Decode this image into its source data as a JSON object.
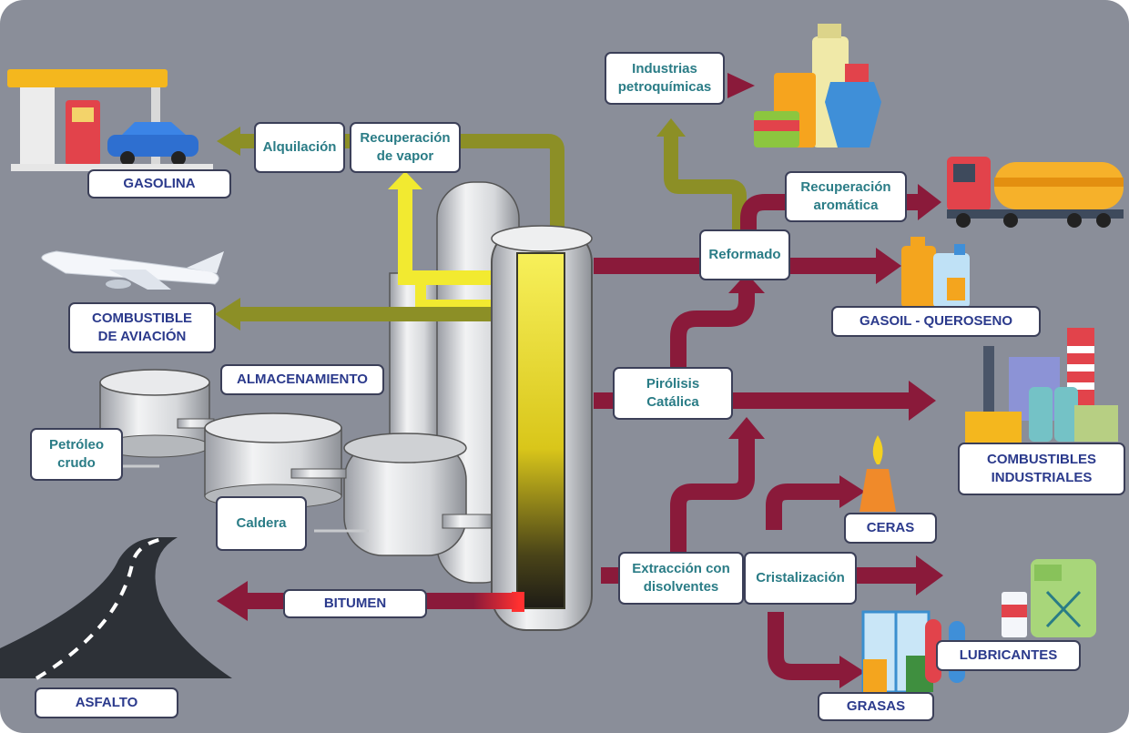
{
  "palette": {
    "background": "#8a8e99",
    "flow_red": "#8a1a3a",
    "flow_olive": "#8c8f26",
    "flow_yellow": "#f2ea30",
    "process_text": "#2a7c86",
    "product_text": "#2b3a8c"
  },
  "icons": [
    "gas-station-icon",
    "airplane-icon",
    "storage-tank-icon",
    "boiler-icon",
    "distillation-column-icon",
    "road-icon",
    "chemical-bottles-icon",
    "tanker-truck-icon",
    "fuel-cans-icon",
    "factory-icon",
    "candle-icon",
    "grease-icon",
    "lubricant-jerrycan-icon"
  ],
  "processes": {
    "alquilacion": "Alquilación",
    "recuperacion_vapor": "Recuperación\nde vapor",
    "industrias_petroquimicas": "Industrias\npetroquímicas",
    "recuperacion_aromatica": "Recuperación\naromática",
    "reformado": "Reformado",
    "pirolisis_catalitica": "Pirólisis\nCatálica",
    "extraccion_disolventes": "Extracción con\ndisolventes",
    "cristalizacion": "Cristalización",
    "almacenamiento": "ALMACENAMIENTO",
    "petroleo_crudo": "Petróleo\ncrudo",
    "caldera": "Caldera"
  },
  "products": {
    "gasolina": "GASOLINA",
    "combustible_aviacion": "COMBUSTIBLE\nDE AVIACIÓN",
    "gasoil_queroseno": "GASOIL - QUEROSENO",
    "combustibles_industriales": "COMBUSTIBLES\nINDUSTRIALES",
    "ceras": "CERAS",
    "lubricantes": "LUBRICANTES",
    "grasas": "GRASAS",
    "bitumen": "BITUMEN",
    "asfalto": "ASFALTO"
  }
}
